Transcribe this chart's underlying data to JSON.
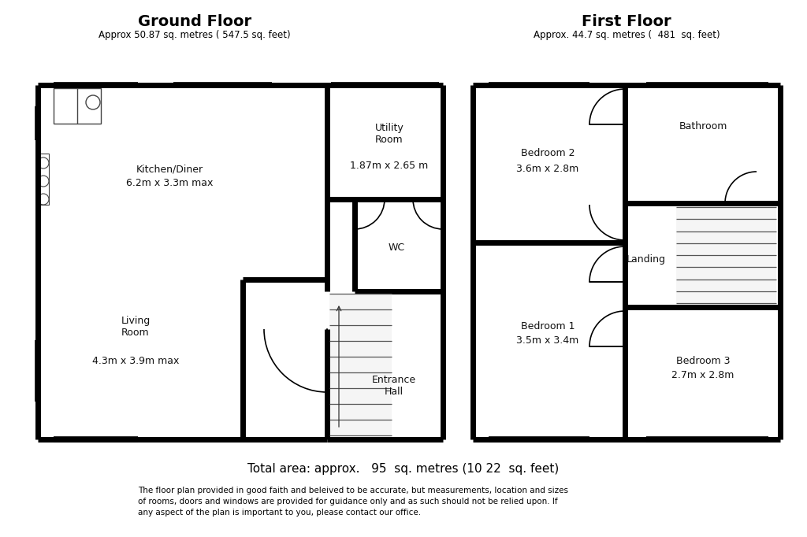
{
  "title_gf": "Ground Floor",
  "subtitle_gf": "Approx 50.87 sq. metres ( 547.5 sq. feet)",
  "title_ff": "First Floor",
  "subtitle_ff": "Approx. 44.7 sq. metres (  481  sq. feet)",
  "total_area": "Total area: approx.   95  sq. metres (10 22  sq. feet)",
  "disclaimer": "The floor plan provided in good faith and beleived to be accurate, but measurements, location and sizes\nof rooms, doors and windows are provided for guidance only and as such should not be relied upon. If\nany aspect of the plan is important to you, please contact our office.",
  "bg_color": "#ffffff",
  "wall_color": "#000000",
  "wall_lw": 5.0,
  "thin_lw": 1.2
}
